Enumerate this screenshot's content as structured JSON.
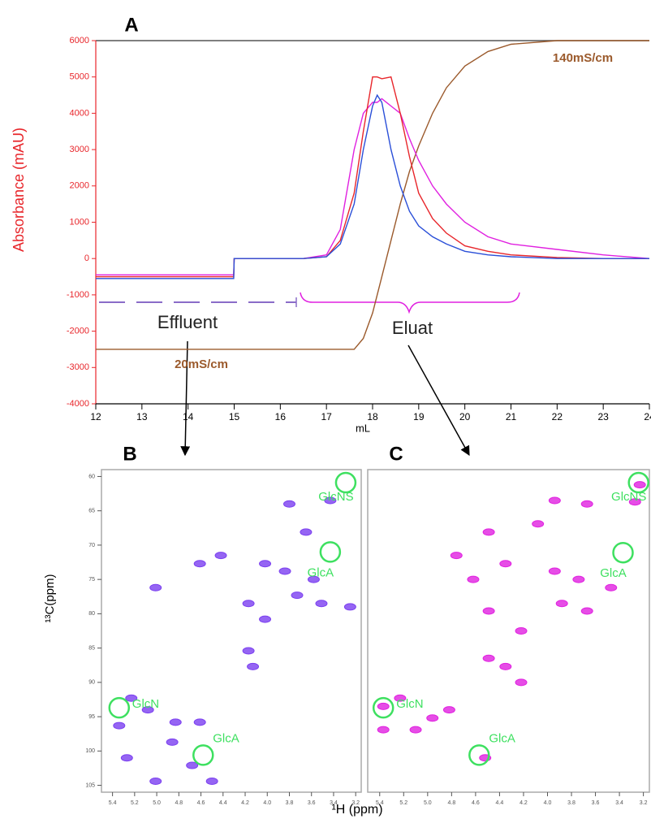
{
  "chart_data": [
    {
      "type": "line",
      "title": "A",
      "ylabel": "Absorbance (mAU)",
      "xlabel": "mL",
      "xlim": [
        12,
        24
      ],
      "ylim": [
        -4000,
        6000
      ],
      "xticks": [
        12,
        13,
        14,
        15,
        16,
        17,
        18,
        19,
        20,
        21,
        22,
        23,
        24
      ],
      "yticks": [
        -4000,
        -3000,
        -2000,
        -1000,
        0,
        1000,
        2000,
        3000,
        4000,
        5000,
        6000
      ],
      "y_axis_color": "#e8262b",
      "x": [
        12,
        13,
        14,
        14.99,
        15,
        16,
        16.5,
        17,
        17.3,
        17.6,
        17.8,
        18,
        18.1,
        18.2,
        18.4,
        18.6,
        18.8,
        19,
        19.3,
        19.6,
        20,
        20.5,
        21,
        22,
        23,
        24
      ],
      "series": [
        {
          "color": "#e8262b",
          "values": [
            -500,
            -500,
            -500,
            -500,
            0,
            0,
            0,
            50,
            500,
            1800,
            3500,
            5000,
            5000,
            4950,
            5000,
            4000,
            2800,
            1800,
            1100,
            700,
            350,
            200,
            100,
            30,
            0,
            0
          ]
        },
        {
          "color": "#2a4fd8",
          "values": [
            -550,
            -550,
            -550,
            -550,
            0,
            0,
            0,
            50,
            400,
            1500,
            3000,
            4200,
            4500,
            4300,
            3000,
            2000,
            1300,
            900,
            600,
            400,
            200,
            100,
            50,
            0,
            0,
            0
          ]
        },
        {
          "color": "#e020e0",
          "values": [
            -450,
            -450,
            -450,
            -450,
            0,
            0,
            0,
            100,
            800,
            3000,
            4000,
            4300,
            4300,
            4400,
            4200,
            4000,
            3300,
            2700,
            2000,
            1500,
            1000,
            600,
            400,
            250,
            100,
            0
          ]
        },
        {
          "color": "#9b5a2c",
          "values": [
            -2500,
            -2500,
            -2500,
            -2500,
            -2500,
            -2500,
            -2500,
            -2500,
            -2500,
            -2500,
            -2200,
            -1500,
            -1000,
            -500,
            500,
            1500,
            2400,
            3100,
            4000,
            4700,
            5300,
            5700,
            5900,
            6000,
            6000,
            6000
          ]
        }
      ],
      "annotations": [
        "140mS/cm",
        "20mS/cm",
        "Effluent",
        "Eluat"
      ]
    },
    {
      "type": "scatter",
      "title": "B",
      "ylabel": "¹³C(ppm)",
      "xlabel": "¹H (ppm)",
      "xlim": [
        5.5,
        3.15
      ],
      "ylim": [
        59,
        106
      ],
      "color": "#7b3ff0",
      "xticks": [
        5.4,
        5.2,
        {
          "value": 5,
          "label": "5.0"
        },
        4.8,
        4.6,
        4.4,
        4.2,
        {
          "value": 4,
          "label": "4.0"
        },
        3.8,
        3.6,
        3.4,
        3.2
      ],
      "yticks": [
        60,
        65,
        70,
        75,
        80,
        85,
        90,
        95,
        100,
        105
      ],
      "x": [
        3.8,
        3.43,
        3.65,
        4.02,
        3.84,
        3.58,
        3.73,
        3.51,
        4.17,
        4.61,
        4.42,
        5.01,
        4.17,
        4.13,
        4.02,
        5.23,
        5.34,
        5.08,
        4.83,
        4.61,
        4.86,
        5.27,
        5.01,
        4.5,
        4.68,
        3.25
      ],
      "values": [
        64.0,
        63.5,
        68.1,
        72.7,
        73.8,
        75.0,
        77.3,
        78.5,
        78.5,
        72.7,
        71.5,
        76.2,
        85.4,
        87.7,
        80.8,
        92.3,
        96.3,
        94.0,
        95.8,
        95.8,
        98.7,
        101.0,
        104.4,
        104.4,
        102.1,
        79.0
      ],
      "peaks": [
        {
          "label": "GlcNS",
          "x": 3.29,
          "y": 60.9
        },
        {
          "label": "GlcA",
          "x": 3.43,
          "y": 71.0
        },
        {
          "label": "GlcN",
          "x": 5.34,
          "y": 93.7
        },
        {
          "label": "GlcA",
          "x": 4.58,
          "y": 100.6
        }
      ]
    },
    {
      "type": "scatter",
      "title": "C",
      "xlim": [
        5.5,
        3.15
      ],
      "ylim": [
        59,
        106
      ],
      "color": "#e020e0",
      "xticks": [
        5.4,
        5.2,
        {
          "value": 5,
          "label": "5.0"
        },
        4.8,
        4.6,
        4.4,
        4.2,
        {
          "value": 4,
          "label": "4.0"
        },
        3.8,
        3.6,
        3.4,
        3.2
      ],
      "x": [
        3.94,
        3.67,
        3.27,
        4.08,
        4.49,
        4.76,
        4.35,
        3.94,
        3.74,
        4.62,
        3.47,
        3.88,
        4.49,
        3.67,
        4.22,
        4.49,
        4.35,
        4.22,
        5.23,
        5.37,
        4.96,
        4.82,
        5.1,
        4.52,
        5.37,
        3.23
      ],
      "values": [
        63.5,
        64.0,
        63.7,
        66.9,
        68.1,
        71.5,
        72.7,
        73.8,
        75.0,
        75.0,
        76.2,
        78.5,
        79.6,
        79.6,
        82.5,
        86.5,
        87.7,
        90.0,
        92.3,
        93.5,
        95.2,
        94.0,
        96.9,
        101.0,
        96.9,
        61.2
      ],
      "peaks": [
        {
          "label": "GlcNS",
          "x": 3.24,
          "y": 60.9
        },
        {
          "label": "GlcA",
          "x": 3.37,
          "y": 71.1
        },
        {
          "label": "GlcN",
          "x": 5.37,
          "y": 93.7
        },
        {
          "label": "GlcA",
          "x": 4.57,
          "y": 100.6
        }
      ]
    }
  ]
}
